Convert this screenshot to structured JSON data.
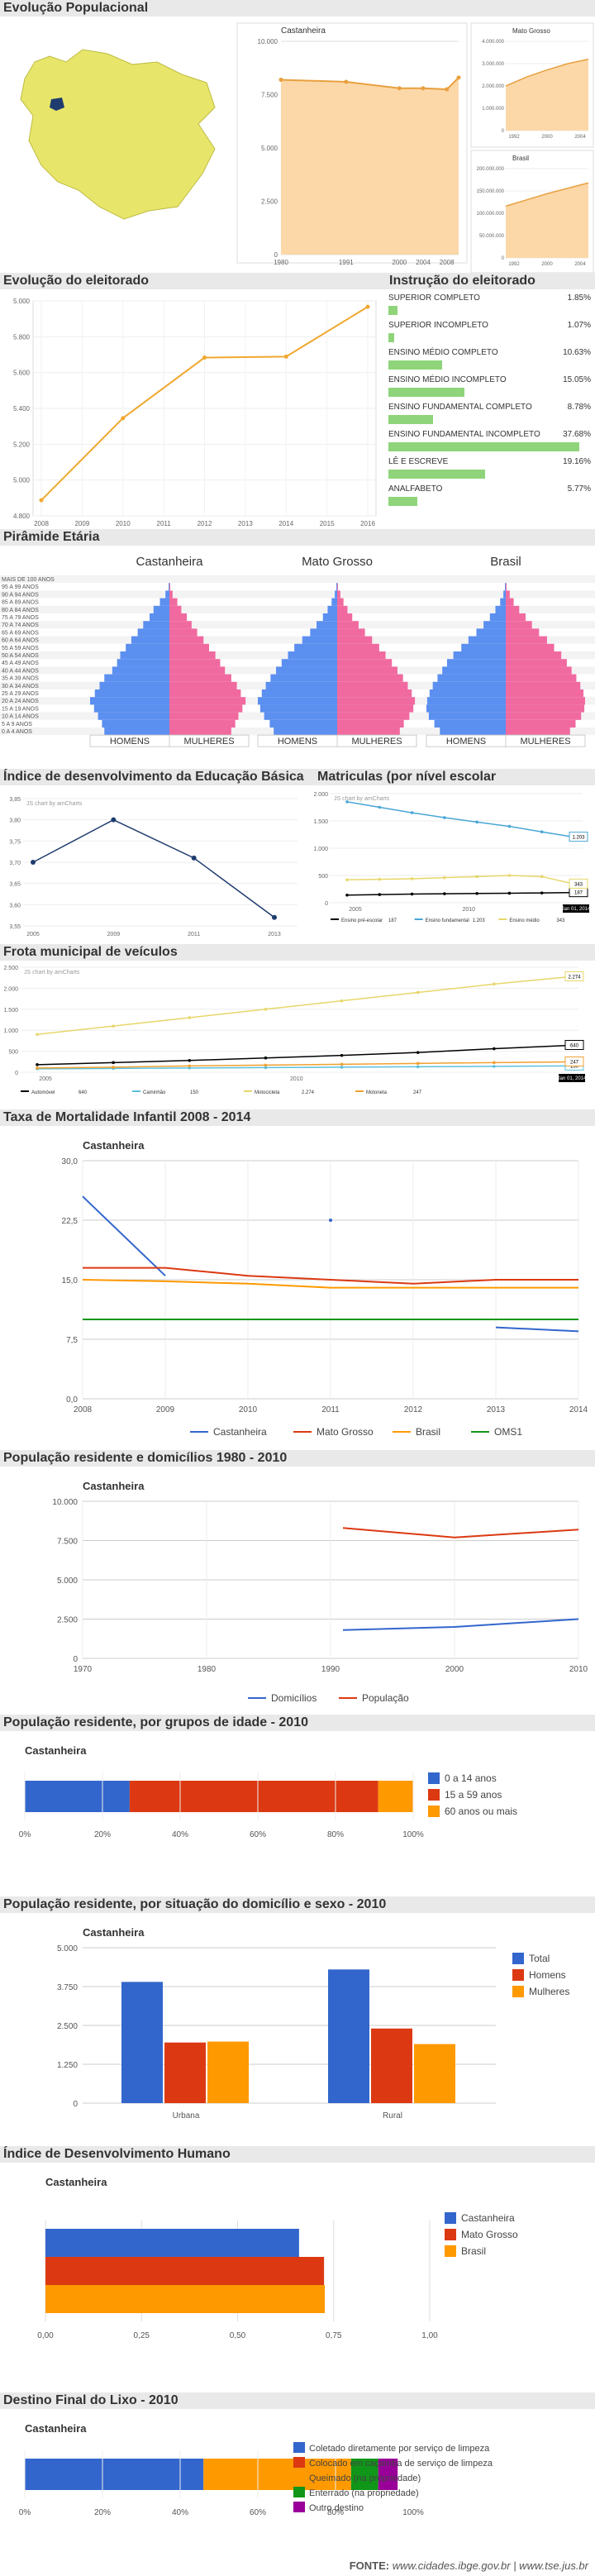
{
  "s1": {
    "title": "Evolução Populacional",
    "main": {
      "name": "Castanheira",
      "x": [
        1980,
        1991,
        2000,
        2004,
        2008,
        2010
      ],
      "y": [
        8200,
        8100,
        7800,
        7800,
        7750,
        8300
      ],
      "yt": [
        "10.000",
        "7.500",
        "5.000",
        "2.500",
        "0"
      ],
      "xt": [
        "1980",
        "1991",
        "2000",
        "2004",
        "2008"
      ]
    },
    "mt": {
      "name": "Mato Grosso",
      "yt": [
        "4.000.000",
        "3.000.000",
        "2.000.000",
        "1.000.000",
        "0"
      ],
      "xt": [
        "1992",
        "2000",
        "2004"
      ]
    },
    "br": {
      "name": "Brasil",
      "yt": [
        "200.000.000",
        "150.000.000",
        "100.000.000",
        "50.000.000",
        "0"
      ],
      "xt": [
        "1992",
        "2000",
        "2004"
      ]
    }
  },
  "s2": {
    "title": "Evolução do eleitorado",
    "chart": {
      "x": [
        "2008",
        "2009",
        "2010",
        "2011",
        "2012",
        "2013",
        "2014",
        "2015",
        "2016"
      ],
      "y": [
        4880,
        null,
        5300,
        null,
        5610,
        null,
        5615,
        null,
        5870
      ],
      "yt": [
        "5.000",
        "5.800",
        "5.600",
        "5.400",
        "5.200",
        "5.000",
        "4.800"
      ]
    }
  },
  "s3": {
    "title": "Instrução do eleitorado",
    "items": [
      {
        "label": "SUPERIOR COMPLETO",
        "pct": "1.85%",
        "v": 1.85
      },
      {
        "label": "SUPERIOR INCOMPLETO",
        "pct": "1.07%",
        "v": 1.07
      },
      {
        "label": "ENSINO MÉDIO COMPLETO",
        "pct": "10.63%",
        "v": 10.63
      },
      {
        "label": "ENSINO MÉDIO INCOMPLETO",
        "pct": "15.05%",
        "v": 15.05
      },
      {
        "label": "ENSINO FUNDAMENTAL COMPLETO",
        "pct": "8.78%",
        "v": 8.78
      },
      {
        "label": "ENSINO FUNDAMENTAL INCOMPLETO",
        "pct": "37.68%",
        "v": 37.68
      },
      {
        "label": "LÊ E ESCREVE",
        "pct": "19.16%",
        "v": 19.16
      },
      {
        "label": "ANALFABETO",
        "pct": "5.77%",
        "v": 5.77
      }
    ]
  },
  "s4": {
    "title": "Pirâmide Etária",
    "groups": [
      "Castanheira",
      "Mato Grosso",
      "Brasil"
    ],
    "ages": [
      "MAIS DE 100 ANOS",
      "95 A 99 ANOS",
      "90 A 94 ANOS",
      "85 A 89 ANOS",
      "80 A 84 ANOS",
      "75 A 79 ANOS",
      "70 A 74 ANOS",
      "65 A 69 ANOS",
      "60 A 64 ANOS",
      "55 A 59 ANOS",
      "50 A 54 ANOS",
      "45 A 49 ANOS",
      "40 A 44 ANOS",
      "35 A 39 ANOS",
      "30 A 34 ANOS",
      "25 A 29 ANOS",
      "20 A 24 ANOS",
      "15 A 19 ANOS",
      "10 A 14 ANOS",
      "5 A 9 ANOS",
      "0 A 4 ANOS"
    ],
    "men": "HOMENS",
    "women": "MULHERES",
    "data": {
      "Castanheira": {
        "m": [
          0,
          0.01,
          0.05,
          0.12,
          0.2,
          0.25,
          0.33,
          0.4,
          0.48,
          0.55,
          0.62,
          0.66,
          0.72,
          0.82,
          0.88,
          0.94,
          1.0,
          0.95,
          0.9,
          0.85,
          0.82
        ],
        "w": [
          0,
          0.01,
          0.04,
          0.1,
          0.15,
          0.22,
          0.28,
          0.35,
          0.43,
          0.5,
          0.58,
          0.64,
          0.7,
          0.78,
          0.85,
          0.9,
          0.96,
          0.92,
          0.87,
          0.83,
          0.78
        ]
      },
      "Mato Grosso": {
        "m": [
          0,
          0.01,
          0.03,
          0.07,
          0.12,
          0.18,
          0.26,
          0.34,
          0.44,
          0.54,
          0.62,
          0.7,
          0.77,
          0.84,
          0.9,
          0.95,
          1.0,
          0.97,
          0.92,
          0.85,
          0.8
        ],
        "w": [
          0,
          0.01,
          0.04,
          0.08,
          0.13,
          0.19,
          0.27,
          0.35,
          0.44,
          0.53,
          0.61,
          0.69,
          0.76,
          0.83,
          0.89,
          0.94,
          0.98,
          0.96,
          0.91,
          0.84,
          0.79
        ]
      },
      "Brasil": {
        "m": [
          0,
          0.01,
          0.03,
          0.07,
          0.13,
          0.2,
          0.28,
          0.37,
          0.47,
          0.56,
          0.66,
          0.74,
          0.8,
          0.86,
          0.92,
          0.96,
          0.99,
          1.0,
          0.97,
          0.9,
          0.83
        ],
        "w": [
          0,
          0.01,
          0.05,
          0.1,
          0.17,
          0.25,
          0.33,
          0.42,
          0.52,
          0.61,
          0.7,
          0.77,
          0.83,
          0.89,
          0.94,
          0.98,
          1.0,
          0.99,
          0.95,
          0.88,
          0.81
        ]
      }
    }
  },
  "s5": {
    "title": "Índice de desenvolvimento da Educação Básica",
    "chart": {
      "x": [
        "2005",
        "2009",
        "2011",
        "2013"
      ],
      "y": [
        3.7,
        3.8,
        3.71,
        3.57
      ],
      "yt": [
        "3,85",
        "3,80",
        "3,75",
        "3,70",
        "3,65",
        "3,60",
        "3,55"
      ],
      "credit": "JS chart by amCharts"
    }
  },
  "s6": {
    "title": "Matriculas (por nível escolar",
    "chart": {
      "credit": "JS chart by amCharts",
      "yt": [
        "2.000",
        "1.500",
        "1.000",
        "500",
        "0"
      ],
      "xt": [
        "2005",
        "2010"
      ],
      "series": [
        {
          "name": "Ensino pré-escolar",
          "last": "187",
          "color": "#000000",
          "y": [
            140,
            150,
            160,
            165,
            170,
            175,
            180,
            187
          ]
        },
        {
          "name": "Ensino fundamental",
          "last": "1.203",
          "color": "#4aa6d6",
          "y": [
            1850,
            1750,
            1650,
            1560,
            1480,
            1400,
            1300,
            1203
          ]
        },
        {
          "name": "Ensino médio",
          "last": "343",
          "color": "#e6d76a",
          "y": [
            420,
            430,
            440,
            460,
            480,
            500,
            480,
            343
          ]
        }
      ],
      "labels": [
        "1.203",
        "343",
        "187"
      ],
      "date": "Jan 01, 2014"
    }
  },
  "s7": {
    "title": "Frota municipal de veículos",
    "chart": {
      "credit": "JS chart by amCharts",
      "yt": [
        "2.500",
        "2.000",
        "1.500",
        "1.000",
        "500",
        "0"
      ],
      "xt": [
        "2005",
        "2010"
      ],
      "series": [
        {
          "name": "Automóvel",
          "last": "640",
          "color": "#000000",
          "y": [
            180,
            230,
            280,
            340,
            400,
            470,
            560,
            640
          ]
        },
        {
          "name": "Caminhão",
          "last": "150",
          "color": "#5bc0de",
          "y": [
            80,
            90,
            100,
            110,
            120,
            130,
            140,
            150
          ]
        },
        {
          "name": "Motocicleta",
          "last": "2.274",
          "color": "#e6d76a",
          "y": [
            900,
            1100,
            1300,
            1500,
            1700,
            1900,
            2100,
            2274
          ]
        },
        {
          "name": "Motoneta",
          "last": "247",
          "color": "#f0a030",
          "y": [
            100,
            120,
            150,
            170,
            190,
            210,
            230,
            247
          ]
        }
      ],
      "labels": [
        "2.274",
        "640",
        "247",
        "150"
      ],
      "date": "Jan 01, 2014"
    }
  },
  "s8": {
    "title": "Taxa de Mortalidade Infantil 2008 - 2014",
    "chart_title": "Castanheira",
    "chart": {
      "x": [
        "2008",
        "2009",
        "2010",
        "2011",
        "2012",
        "2013",
        "2014"
      ],
      "yt": [
        "30,0",
        "22,5",
        "15,0",
        "7,5",
        "0,0"
      ],
      "ymax": 30,
      "series": [
        {
          "name": "Castanheira",
          "color": "#3366cc",
          "y": [
            25.5,
            15.5,
            null,
            null,
            null,
            9,
            8.5
          ]
        },
        {
          "name": "Mato Grosso",
          "color": "#dc3912",
          "y": [
            16.5,
            16.5,
            15.5,
            15,
            14.5,
            15,
            15
          ]
        },
        {
          "name": "Brasil",
          "color": "#ff9900",
          "y": [
            15,
            14.8,
            14.5,
            14,
            14,
            14,
            14
          ]
        },
        {
          "name": "OMS1",
          "color": "#109618",
          "y": [
            10,
            10,
            10,
            10,
            10,
            10,
            10
          ]
        }
      ],
      "dot": {
        "x": "2011",
        "y": 22.5
      }
    }
  },
  "s9": {
    "title": "População residente e domicílios 1980 - 2010",
    "chart_title": "Castanheira",
    "chart": {
      "xt": [
        "1970",
        "1980",
        "1990",
        "2000",
        "2010"
      ],
      "yt": [
        "10.000",
        "7.500",
        "5.000",
        "2.500",
        "0"
      ],
      "ymax": 10000,
      "series": [
        {
          "name": "Domicílios",
          "color": "#3366cc",
          "x": [
            1991,
            2000,
            2010
          ],
          "y": [
            1800,
            2000,
            2500
          ]
        },
        {
          "name": "População",
          "color": "#dc3912",
          "x": [
            1991,
            2000,
            2010
          ],
          "y": [
            8300,
            7700,
            8200
          ]
        }
      ]
    }
  },
  "s10": {
    "title": "População residente, por grupos de idade - 2010",
    "chart_title": "Castanheira",
    "chart": {
      "xt": [
        "0%",
        "20%",
        "40%",
        "60%",
        "80%",
        "100%"
      ],
      "series": [
        {
          "name": "0 a 14 anos",
          "color": "#3366cc",
          "v": 27
        },
        {
          "name": "15 a 59 anos",
          "color": "#dc3912",
          "v": 64
        },
        {
          "name": "60 anos ou mais",
          "color": "#ff9900",
          "v": 9
        }
      ]
    }
  },
  "s11": {
    "title": "População residente, por situação do domicílio e sexo - 2010",
    "chart_title": "Castanheira",
    "chart": {
      "categories": [
        "Urbana",
        "Rural"
      ],
      "yt": [
        "5.000",
        "3.750",
        "2.500",
        "1.250",
        "0"
      ],
      "ymax": 5000,
      "series": [
        {
          "name": "Total",
          "color": "#3366cc",
          "values": [
            3900,
            4300
          ]
        },
        {
          "name": "Homens",
          "color": "#dc3912",
          "values": [
            1950,
            2400
          ]
        },
        {
          "name": "Mulheres",
          "color": "#ff9900",
          "values": [
            1980,
            1900
          ]
        }
      ]
    }
  },
  "s12": {
    "title": "Índice de Desenvolvimento Humano",
    "chart_title": "Castanheira",
    "chart": {
      "xt": [
        "0,00",
        "0,25",
        "0,50",
        "0,75",
        "1,00"
      ],
      "xmax": 1.0,
      "series": [
        {
          "name": "Castanheira",
          "color": "#3366cc",
          "v": 0.66
        },
        {
          "name": "Mato Grosso",
          "color": "#dc3912",
          "v": 0.725
        },
        {
          "name": "Brasil",
          "color": "#ff9900",
          "v": 0.727
        }
      ]
    }
  },
  "s13": {
    "title": "Destino Final do Lixo - 2010",
    "chart_title": "Castanheira",
    "chart": {
      "xt": [
        "0%",
        "20%",
        "40%",
        "60%",
        "80%",
        "100%"
      ],
      "series": [
        {
          "name": "Coletado diretamente por serviço de limpeza",
          "color": "#3366cc",
          "v": 46
        },
        {
          "name": "Colocado em caçamba de serviço de limpeza",
          "color": "#ff9900",
          "v": 38
        },
        {
          "name": "Queimado (na propriedade)",
          "color": "#ff9900",
          "v": 0
        },
        {
          "name": "Enterrado (na propriedade)",
          "color": "#109618",
          "v": 7
        },
        {
          "name": "Outro destino",
          "color": "#990099",
          "v": 5
        }
      ],
      "legend_colors": [
        "#3366cc",
        "#dc3912",
        "#ff9900",
        "#109618",
        "#990099"
      ],
      "bar_colors": [
        "#3366cc",
        "#ff9900",
        "#ff9900",
        "#109618",
        "#990099"
      ]
    }
  },
  "footer": {
    "label": "FONTE:",
    "text": "www.cidades.ibge.gov.br | www.tse.jus.br"
  }
}
